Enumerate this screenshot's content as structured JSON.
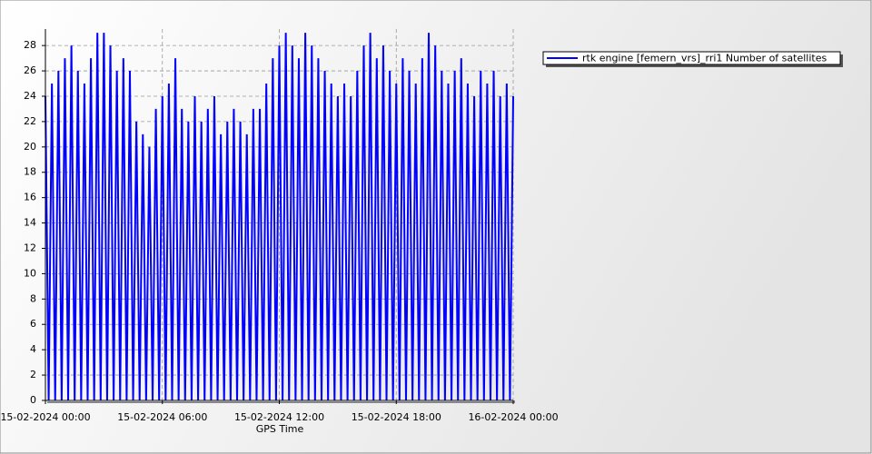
{
  "chart_data": {
    "type": "line",
    "x_label": "GPS Time",
    "x": [
      "15-02-2024 00:00",
      "15-02-2024 00:10",
      "15-02-2024 00:20",
      "15-02-2024 00:30",
      "15-02-2024 00:40",
      "15-02-2024 00:50",
      "15-02-2024 01:00",
      "15-02-2024 01:10",
      "15-02-2024 01:20",
      "15-02-2024 01:30",
      "15-02-2024 01:40",
      "15-02-2024 01:50",
      "15-02-2024 02:00",
      "15-02-2024 02:10",
      "15-02-2024 02:20",
      "15-02-2024 02:30",
      "15-02-2024 02:40",
      "15-02-2024 02:50",
      "15-02-2024 03:00",
      "15-02-2024 03:10",
      "15-02-2024 03:20",
      "15-02-2024 03:30",
      "15-02-2024 03:40",
      "15-02-2024 03:50",
      "15-02-2024 04:00",
      "15-02-2024 04:10",
      "15-02-2024 04:20",
      "15-02-2024 04:30",
      "15-02-2024 04:40",
      "15-02-2024 04:50",
      "15-02-2024 05:00",
      "15-02-2024 05:10",
      "15-02-2024 05:20",
      "15-02-2024 05:30",
      "15-02-2024 05:40",
      "15-02-2024 05:50",
      "15-02-2024 06:00",
      "15-02-2024 06:10",
      "15-02-2024 06:20",
      "15-02-2024 06:30",
      "15-02-2024 06:40",
      "15-02-2024 06:50",
      "15-02-2024 07:00",
      "15-02-2024 07:10",
      "15-02-2024 07:20",
      "15-02-2024 07:30",
      "15-02-2024 07:40",
      "15-02-2024 07:50",
      "15-02-2024 08:00",
      "15-02-2024 08:10",
      "15-02-2024 08:20",
      "15-02-2024 08:30",
      "15-02-2024 08:40",
      "15-02-2024 08:50",
      "15-02-2024 09:00",
      "15-02-2024 09:10",
      "15-02-2024 09:20",
      "15-02-2024 09:30",
      "15-02-2024 09:40",
      "15-02-2024 09:50",
      "15-02-2024 10:00",
      "15-02-2024 10:10",
      "15-02-2024 10:20",
      "15-02-2024 10:30",
      "15-02-2024 10:40",
      "15-02-2024 10:50",
      "15-02-2024 11:00",
      "15-02-2024 11:10",
      "15-02-2024 11:20",
      "15-02-2024 11:30",
      "15-02-2024 11:40",
      "15-02-2024 11:50",
      "15-02-2024 12:00",
      "15-02-2024 12:10",
      "15-02-2024 12:20",
      "15-02-2024 12:30",
      "15-02-2024 12:40",
      "15-02-2024 12:50",
      "15-02-2024 13:00",
      "15-02-2024 13:10",
      "15-02-2024 13:20",
      "15-02-2024 13:30",
      "15-02-2024 13:40",
      "15-02-2024 13:50",
      "15-02-2024 14:00",
      "15-02-2024 14:10",
      "15-02-2024 14:20",
      "15-02-2024 14:30",
      "15-02-2024 14:40",
      "15-02-2024 14:50",
      "15-02-2024 15:00",
      "15-02-2024 15:10",
      "15-02-2024 15:20",
      "15-02-2024 15:30",
      "15-02-2024 15:40",
      "15-02-2024 15:50",
      "15-02-2024 16:00",
      "15-02-2024 16:10",
      "15-02-2024 16:20",
      "15-02-2024 16:30",
      "15-02-2024 16:40",
      "15-02-2024 16:50",
      "15-02-2024 17:00",
      "15-02-2024 17:10",
      "15-02-2024 17:20",
      "15-02-2024 17:30",
      "15-02-2024 17:40",
      "15-02-2024 17:50",
      "15-02-2024 18:00",
      "15-02-2024 18:10",
      "15-02-2024 18:20",
      "15-02-2024 18:30",
      "15-02-2024 18:40",
      "15-02-2024 18:50",
      "15-02-2024 19:00",
      "15-02-2024 19:10",
      "15-02-2024 19:20",
      "15-02-2024 19:30",
      "15-02-2024 19:40",
      "15-02-2024 19:50",
      "15-02-2024 20:00",
      "15-02-2024 20:10",
      "15-02-2024 20:20",
      "15-02-2024 20:30",
      "15-02-2024 20:40",
      "15-02-2024 20:50",
      "15-02-2024 21:00",
      "15-02-2024 21:10",
      "15-02-2024 21:20",
      "15-02-2024 21:30",
      "15-02-2024 21:40",
      "15-02-2024 21:50",
      "15-02-2024 22:00",
      "15-02-2024 22:10",
      "15-02-2024 22:20",
      "15-02-2024 22:30",
      "15-02-2024 22:40",
      "15-02-2024 22:50",
      "15-02-2024 23:00",
      "15-02-2024 23:10",
      "15-02-2024 23:20",
      "15-02-2024 23:30",
      "15-02-2024 23:40",
      "15-02-2024 23:50",
      "16-02-2024 00:00"
    ],
    "series": [
      {
        "name": "rtk engine [femern_vrs]_rri1 Number of satellites",
        "color": "#0000ff",
        "values": [
          24,
          0,
          25,
          0,
          26,
          0,
          27,
          0,
          28,
          0,
          26,
          0,
          25,
          0,
          27,
          0,
          29,
          0,
          29,
          0,
          28,
          0,
          26,
          0,
          27,
          0,
          26,
          0,
          22,
          0,
          21,
          0,
          20,
          0,
          23,
          0,
          24,
          0,
          25,
          0,
          27,
          0,
          23,
          0,
          22,
          0,
          24,
          0,
          22,
          0,
          23,
          0,
          24,
          0,
          21,
          0,
          22,
          0,
          23,
          0,
          22,
          0,
          21,
          0,
          23,
          0,
          23,
          0,
          25,
          0,
          27,
          0,
          28,
          0,
          29,
          0,
          28,
          0,
          27,
          0,
          29,
          0,
          28,
          0,
          27,
          0,
          26,
          0,
          25,
          0,
          24,
          0,
          25,
          0,
          24,
          0,
          26,
          0,
          28,
          0,
          29,
          0,
          27,
          0,
          28,
          0,
          26,
          0,
          25,
          0,
          27,
          0,
          26,
          0,
          25,
          0,
          27,
          0,
          29,
          0,
          28,
          0,
          26,
          0,
          25,
          0,
          26,
          0,
          27,
          0,
          25,
          0,
          24,
          0,
          26,
          0,
          25,
          0,
          26,
          0,
          24,
          0,
          25,
          0,
          24
        ]
      }
    ],
    "xlim": [
      "15-02-2024 00:00",
      "16-02-2024 00:00"
    ],
    "xticks": [
      "15-02-2024 00:00",
      "15-02-2024 06:00",
      "15-02-2024 12:00",
      "15-02-2024 18:00",
      "16-02-2024 00:00"
    ],
    "ylim": [
      0,
      29.3
    ],
    "yticks": [
      0,
      2,
      4,
      6,
      8,
      10,
      12,
      14,
      16,
      18,
      20,
      22,
      24,
      26,
      28
    ],
    "grid": true
  }
}
